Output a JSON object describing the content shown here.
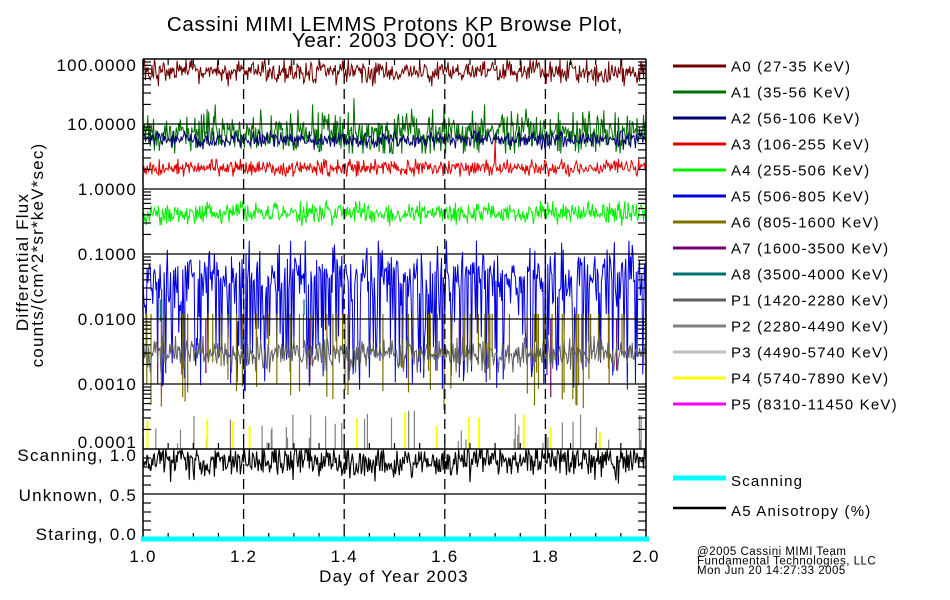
{
  "chart_data": {
    "type": "line",
    "title": {
      "line1": "Cassini MIMI LEMMS Protons KP Browse Plot,",
      "line2": "Year: 2003 DOY: 001"
    },
    "xlabel": "Day of Year 2003",
    "ylabel": {
      "line1": "Differential Flux",
      "line2": "counts/(cm^2*sr*keV*sec)"
    },
    "xlim": [
      1.0,
      2.0
    ],
    "x_ticks": [
      {
        "value": 1.0,
        "label": "1.0"
      },
      {
        "value": 1.2,
        "label": "1.2"
      },
      {
        "value": 1.4,
        "label": "1.4"
      },
      {
        "value": 1.6,
        "label": "1.6"
      },
      {
        "value": 1.8,
        "label": "1.8"
      },
      {
        "value": 2.0,
        "label": "2.0"
      }
    ],
    "x_minor_step": 0.05,
    "grid": true,
    "legend_position": "right",
    "flux_panel": {
      "yscale": "log",
      "ylim": [
        0.0001,
        100
      ],
      "y_ticks": [
        {
          "value": 100,
          "label": "100.0000"
        },
        {
          "value": 10,
          "label": "10.0000"
        },
        {
          "value": 1,
          "label": "1.0000"
        },
        {
          "value": 0.1,
          "label": "0.1000"
        },
        {
          "value": 0.01,
          "label": "0.0100"
        },
        {
          "value": 0.001,
          "label": "0.0010"
        },
        {
          "value": 0.0001,
          "label": "0.0001"
        }
      ],
      "series": [
        {
          "name": "A0 (27-35 KeV)",
          "color": "#700000",
          "typical": 63,
          "low": 38,
          "high": 100
        },
        {
          "name": "A1 (35-56 KeV)",
          "color": "#007000",
          "typical": 7.5,
          "low": 3.5,
          "high": 20,
          "events": [
            {
              "x": 1.42,
              "y": 25
            }
          ]
        },
        {
          "name": "A2 (56-106 KeV)",
          "color": "#000070",
          "typical": 5.8,
          "low": 4.0,
          "high": 7.8
        },
        {
          "name": "A3 (106-255 KeV)",
          "color": "#e00000",
          "typical": 2.1,
          "low": 1.55,
          "high": 2.9,
          "events": [
            {
              "x": 1.7,
              "y": 5.5
            }
          ]
        },
        {
          "name": "A4 (255-506 KeV)",
          "color": "#00f000",
          "typical": 0.42,
          "low": 0.27,
          "high": 0.65
        },
        {
          "name": "A5 (506-805 KeV)",
          "color": "#0000e0",
          "typical": 0.05,
          "low": 0.0008,
          "high": 0.16,
          "dip_fraction": 0.3
        },
        {
          "name": "A6 (805-1600 KeV)",
          "color": "#807000",
          "spike_count": 70,
          "spike_base": 0.012,
          "low": 0.0004,
          "high": 0.004
        },
        {
          "name": "A7 (1600-3500 KeV)",
          "color": "#700070",
          "spike_count": 8,
          "spike_base": 0.01,
          "low": 0.0003,
          "high": 0.002
        },
        {
          "name": "A8 (3500-4000 KeV)",
          "color": "#007070",
          "spike_count": 3,
          "spike_base": 0.02,
          "low": 0.008,
          "high": 0.015
        },
        {
          "name": "P1 (1420-2280 KeV)",
          "color": "#606060",
          "typical": 0.0029,
          "low": 0.0015,
          "high": 0.0055
        },
        {
          "name": "P2 (2280-4490 KeV)",
          "color": "#808080",
          "spike_count": 45,
          "spike_base": 0.0001,
          "low": 0.00012,
          "high": 0.0004
        },
        {
          "name": "P3 (4490-5740 KeV)",
          "color": "#c0c0c0",
          "spike_count": 0,
          "spike_base": 0.0001,
          "low": 0.0001,
          "high": 0.0001
        },
        {
          "name": "P4 (5740-7890 KeV)",
          "color": "#ffff00",
          "spike_count": 12,
          "spike_base": 0.0001,
          "low": 0.00018,
          "high": 0.0004
        },
        {
          "name": "P5 (8310-11450 KeV)",
          "color": "#ff00ff",
          "spike_count": 1,
          "spike_x": [
            1.0
          ],
          "spike_base": 0.008,
          "low": 0.0008,
          "high": 0.001
        }
      ]
    },
    "mode_panel": {
      "yscale": "linear",
      "ylim": [
        0,
        1
      ],
      "y_ticks": [
        {
          "value": 1.0,
          "label": "Scanning, 1.0"
        },
        {
          "value": 0.5,
          "label": "Unknown, 0.5"
        },
        {
          "value": 0.0,
          "label": "Staring, 0.0"
        }
      ],
      "series": [
        {
          "name": "Scanning",
          "color": "#00ffff",
          "constant": 0
        },
        {
          "name": "A5 Anisotropy (%)",
          "color": "#000000",
          "typical": 0.86,
          "low": 0.55,
          "high": 1.0
        }
      ]
    }
  },
  "credits": {
    "line1": "@2005 Cassini MIMI Team",
    "line2": "Fundamental Technologies, LLC",
    "line3": "Mon Jun 20 14:27:33 2005"
  }
}
